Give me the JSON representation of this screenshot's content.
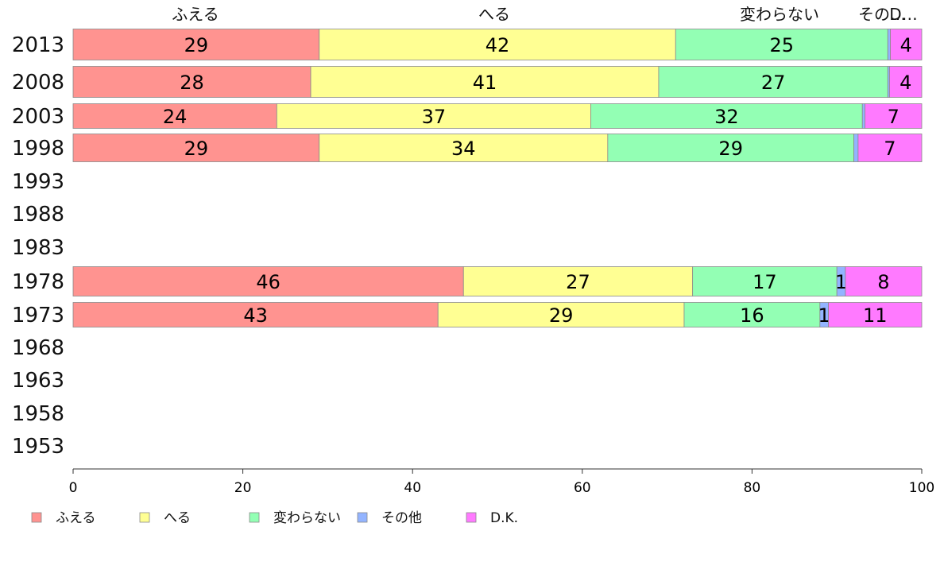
{
  "chart_data": {
    "type": "bar",
    "orientation": "horizontal",
    "stacked": true,
    "categories": [
      "2013",
      "2008",
      "2003",
      "1998",
      "1993",
      "1988",
      "1983",
      "1978",
      "1973",
      "1968",
      "1963",
      "1958",
      "1953"
    ],
    "top_labels": [
      "ふえる",
      "へる",
      "変わらない",
      "その…",
      "D…"
    ],
    "series": [
      {
        "name": "ふえる",
        "color": "#ff9390",
        "values": [
          29,
          28,
          24,
          29,
          null,
          null,
          null,
          46,
          43,
          null,
          null,
          null,
          null
        ]
      },
      {
        "name": "へる",
        "color": "#ffff93",
        "values": [
          42,
          41,
          37,
          34,
          null,
          null,
          null,
          27,
          29,
          null,
          null,
          null,
          null
        ]
      },
      {
        "name": "変わらない",
        "color": "#93ffb4",
        "values": [
          25,
          27,
          32,
          29,
          null,
          null,
          null,
          17,
          16,
          null,
          null,
          null,
          null
        ]
      },
      {
        "name": "その他",
        "color": "#93b4ff",
        "values": [
          0.3,
          0.2,
          0.3,
          0.5,
          null,
          null,
          null,
          1,
          1,
          null,
          null,
          null,
          null
        ]
      },
      {
        "name": "D.K.",
        "color": "#ff7aff",
        "values": [
          4,
          4,
          7,
          7,
          null,
          null,
          null,
          8,
          11,
          null,
          null,
          null,
          null
        ]
      }
    ],
    "xlim": [
      0,
      100
    ],
    "xticks": [
      0,
      20,
      40,
      60,
      80,
      100
    ],
    "legend_position": "bottom-left"
  }
}
